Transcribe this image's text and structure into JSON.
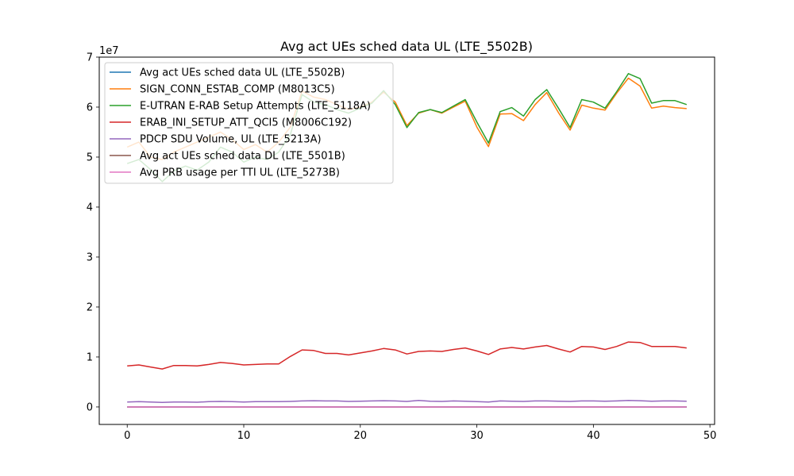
{
  "chart_data": {
    "type": "line",
    "title": "Avg act UEs sched data UL (LTE_5502B)",
    "xlabel": "",
    "ylabel": "",
    "y_scale_label": "1e7",
    "xlim": [
      -2.4,
      50.4
    ],
    "ylim": [
      -3500000,
      70000000
    ],
    "x_ticks": [
      0,
      10,
      20,
      30,
      40,
      50
    ],
    "y_ticks": [
      0,
      10000000,
      20000000,
      30000000,
      40000000,
      50000000,
      60000000,
      70000000
    ],
    "y_tick_labels": [
      "0",
      "1",
      "2",
      "3",
      "4",
      "5",
      "6",
      "7"
    ],
    "grid": false,
    "legend_position": "upper left",
    "x": [
      0,
      1,
      2,
      3,
      4,
      5,
      6,
      7,
      8,
      9,
      10,
      11,
      12,
      13,
      14,
      15,
      16,
      17,
      18,
      19,
      20,
      21,
      22,
      23,
      24,
      25,
      26,
      27,
      28,
      29,
      30,
      31,
      32,
      33,
      34,
      35,
      36,
      37,
      38,
      39,
      40,
      41,
      42,
      43,
      44,
      45,
      46,
      47,
      48
    ],
    "series": [
      {
        "name": "Avg act UEs sched data UL (LTE_5502B)",
        "color": "#1f77b4",
        "values": [
          120,
          122,
          118,
          115,
          119,
          121,
          117,
          120,
          123,
          121,
          118,
          120,
          122,
          121,
          124,
          126,
          125,
          123,
          122,
          121,
          123,
          125,
          127,
          124,
          122,
          125,
          126,
          124,
          125,
          127,
          123,
          120,
          124,
          126,
          125,
          127,
          128,
          126,
          124,
          127,
          128,
          126,
          129,
          131,
          130,
          127,
          128,
          129,
          127
        ]
      },
      {
        "name": "SIGN_CONN_ESTAB_COMP (M8013C5)",
        "color": "#ff7f0e",
        "values": [
          52000000,
          53000000,
          50000000,
          49500000,
          51000000,
          52000000,
          53000000,
          54000000,
          55000000,
          53500000,
          51500000,
          52500000,
          51000000,
          53000000,
          56000000,
          63200000,
          62000000,
          61500000,
          60500000,
          59500000,
          60000000,
          61000000,
          63000000,
          61000000,
          56300000,
          58800000,
          59500000,
          58800000,
          60000000,
          61200000,
          56000000,
          52100000,
          58600000,
          58700000,
          57300000,
          60500000,
          62900000,
          58900000,
          55400000,
          60400000,
          59800000,
          59400000,
          62800000,
          65800000,
          64200000,
          59800000,
          60200000,
          59900000,
          59700000
        ]
      },
      {
        "name": "E-UTRAN E-RAB Setup Attempts (LTE_5118A)",
        "color": "#2ca02c",
        "values": [
          48700000,
          49500000,
          47500000,
          45100000,
          47200000,
          48200000,
          47400000,
          49000000,
          52000000,
          51000000,
          49000000,
          50000000,
          49500000,
          51000000,
          54500000,
          62500000,
          61000000,
          60500000,
          59500000,
          58800000,
          59800000,
          60800000,
          63300000,
          60500000,
          55900000,
          58900000,
          59500000,
          58900000,
          60200000,
          61500000,
          57000000,
          52800000,
          59100000,
          59900000,
          58200000,
          61500000,
          63500000,
          59800000,
          55900000,
          61500000,
          61000000,
          59800000,
          63100000,
          66700000,
          65700000,
          60800000,
          61300000,
          61300000,
          60500000
        ]
      },
      {
        "name": "ERAB_INI_SETUP_ATT_QCI5 (M8006C192)",
        "color": "#d62728",
        "values": [
          8200000,
          8400000,
          8000000,
          7600000,
          8300000,
          8300000,
          8200000,
          8500000,
          8900000,
          8700000,
          8400000,
          8500000,
          8600000,
          8600000,
          10100000,
          11400000,
          11300000,
          10700000,
          10700000,
          10400000,
          10800000,
          11200000,
          11700000,
          11400000,
          10600000,
          11100000,
          11200000,
          11100000,
          11500000,
          11800000,
          11200000,
          10500000,
          11600000,
          11900000,
          11600000,
          12000000,
          12300000,
          11600000,
          11000000,
          12100000,
          12000000,
          11500000,
          12100000,
          13000000,
          12900000,
          12100000,
          12100000,
          12100000,
          11800000
        ]
      },
      {
        "name": "PDCP SDU Volume, UL (LTE_5213A)",
        "color": "#9467bd",
        "values": [
          1000000,
          1050000,
          980000,
          900000,
          1000000,
          1000000,
          950000,
          1050000,
          1100000,
          1050000,
          1000000,
          1050000,
          1050000,
          1050000,
          1100000,
          1200000,
          1250000,
          1200000,
          1200000,
          1100000,
          1150000,
          1200000,
          1250000,
          1200000,
          1100000,
          1300000,
          1150000,
          1100000,
          1200000,
          1150000,
          1050000,
          1000000,
          1200000,
          1150000,
          1100000,
          1200000,
          1200000,
          1150000,
          1100000,
          1200000,
          1200000,
          1150000,
          1200000,
          1300000,
          1250000,
          1150000,
          1200000,
          1200000,
          1150000
        ]
      },
      {
        "name": "Avg act UEs sched data DL (LTE_5501B)",
        "color": "#8c564b",
        "values": [
          150,
          152,
          148,
          146,
          150,
          151,
          149,
          152,
          155,
          153,
          150,
          151,
          152,
          152,
          156,
          160,
          159,
          157,
          156,
          155,
          157,
          159,
          161,
          158,
          155,
          158,
          159,
          158,
          160,
          162,
          157,
          153,
          159,
          160,
          158,
          161,
          163,
          159,
          156,
          161,
          161,
          159,
          162,
          166,
          165,
          160,
          161,
          161,
          160
        ]
      },
      {
        "name": "Avg PRB usage per TTI UL (LTE_5273B)",
        "color": "#e377c2",
        "values": [
          8,
          8,
          7,
          7,
          8,
          8,
          7,
          8,
          9,
          8,
          8,
          8,
          8,
          8,
          9,
          10,
          10,
          9,
          9,
          9,
          9,
          10,
          10,
          10,
          9,
          10,
          10,
          9,
          10,
          10,
          9,
          8,
          10,
          10,
          9,
          10,
          10,
          10,
          9,
          10,
          10,
          10,
          10,
          11,
          11,
          10,
          10,
          10,
          10
        ]
      }
    ]
  }
}
